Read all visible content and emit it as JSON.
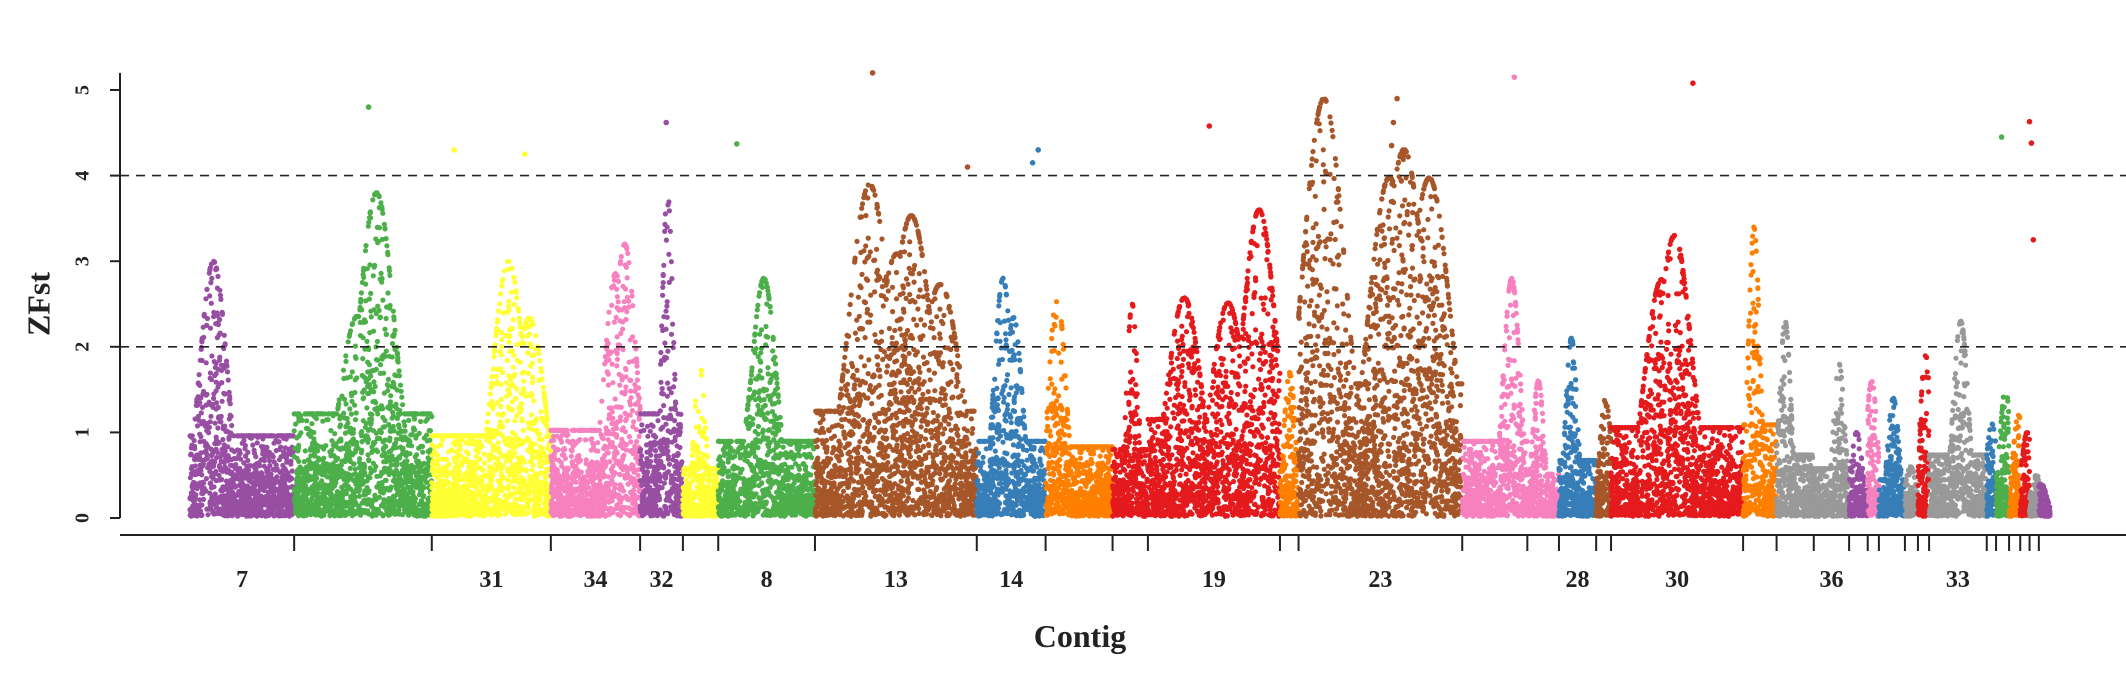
{
  "chart_data": {
    "type": "scatter",
    "title": "",
    "xlabel": "Contig",
    "ylabel": "ZFst",
    "ylim": [
      -0.2,
      5.25
    ],
    "yticks": [
      0,
      1,
      2,
      3,
      4,
      5
    ],
    "reference_lines": [
      2,
      4
    ],
    "grid": false,
    "legend": "none",
    "colors": {
      "purple": "#984ea3",
      "green": "#4daf4a",
      "yellow": "#ffff33",
      "pink": "#f781bf",
      "brown": "#a65628",
      "blue": "#377eb8",
      "orange": "#ff7f00",
      "red": "#e41a1c",
      "grey": "#999999"
    },
    "contigs": [
      {
        "label": "7",
        "start": 0.0,
        "end": 5.6,
        "color": "purple",
        "peak": 3.0
      },
      {
        "label": "",
        "start": 5.6,
        "end": 13.0,
        "color": "green",
        "peak": 3.8
      },
      {
        "label": "31",
        "start": 13.0,
        "end": 19.4,
        "color": "yellow",
        "peak": 3.0
      },
      {
        "label": "34",
        "start": 19.4,
        "end": 24.2,
        "color": "pink",
        "peak": 3.2
      },
      {
        "label": "32",
        "start": 24.2,
        "end": 26.5,
        "color": "purple",
        "peak": 3.8
      },
      {
        "label": "",
        "start": 26.5,
        "end": 28.4,
        "color": "yellow",
        "peak": 1.8
      },
      {
        "label": "8",
        "start": 28.4,
        "end": 33.6,
        "color": "green",
        "peak": 2.8
      },
      {
        "label": "13",
        "start": 33.6,
        "end": 42.3,
        "color": "brown",
        "peak": 3.9
      },
      {
        "label": "14",
        "start": 42.3,
        "end": 46.0,
        "color": "blue",
        "peak": 2.8
      },
      {
        "label": "",
        "start": 46.0,
        "end": 49.6,
        "color": "orange",
        "peak": 2.6
      },
      {
        "label": "",
        "start": 49.6,
        "end": 51.5,
        "color": "red",
        "peak": 2.5
      },
      {
        "label": "19",
        "start": 51.5,
        "end": 58.6,
        "color": "red",
        "peak": 3.6
      },
      {
        "label": "",
        "start": 58.6,
        "end": 59.6,
        "color": "orange",
        "peak": 1.7
      },
      {
        "label": "23",
        "start": 59.6,
        "end": 68.4,
        "color": "brown",
        "peak": 4.9
      },
      {
        "label": "",
        "start": 68.4,
        "end": 71.9,
        "color": "pink",
        "peak": 2.8
      },
      {
        "label": "",
        "start": 71.9,
        "end": 73.6,
        "color": "pink",
        "peak": 1.6
      },
      {
        "label": "28",
        "start": 73.6,
        "end": 75.6,
        "color": "blue",
        "peak": 2.1
      },
      {
        "label": "",
        "start": 75.6,
        "end": 76.4,
        "color": "brown",
        "peak": 1.4
      },
      {
        "label": "30",
        "start": 76.4,
        "end": 83.5,
        "color": "red",
        "peak": 3.3
      },
      {
        "label": "",
        "start": 83.5,
        "end": 85.3,
        "color": "orange",
        "peak": 3.4
      },
      {
        "label": "",
        "start": 85.3,
        "end": 87.3,
        "color": "grey",
        "peak": 2.3
      },
      {
        "label": "36",
        "start": 87.3,
        "end": 89.2,
        "color": "grey",
        "peak": 1.8
      },
      {
        "label": "",
        "start": 89.2,
        "end": 90.2,
        "color": "purple",
        "peak": 1.0
      },
      {
        "label": "",
        "start": 90.2,
        "end": 90.8,
        "color": "pink",
        "peak": 1.6
      },
      {
        "label": "",
        "start": 90.8,
        "end": 92.2,
        "color": "blue",
        "peak": 1.4
      },
      {
        "label": "",
        "start": 92.2,
        "end": 92.9,
        "color": "grey",
        "peak": 0.6
      },
      {
        "label": "",
        "start": 92.9,
        "end": 93.5,
        "color": "red",
        "peak": 1.9
      },
      {
        "label": "33",
        "start": 93.5,
        "end": 96.6,
        "color": "grey",
        "peak": 2.3
      },
      {
        "label": "",
        "start": 96.6,
        "end": 97.1,
        "color": "blue",
        "peak": 1.1
      },
      {
        "label": "",
        "start": 97.1,
        "end": 97.8,
        "color": "green",
        "peak": 1.5
      },
      {
        "label": "",
        "start": 97.8,
        "end": 98.4,
        "color": "orange",
        "peak": 1.2
      },
      {
        "label": "",
        "start": 98.4,
        "end": 98.9,
        "color": "red",
        "peak": 1.0
      },
      {
        "label": "",
        "start": 98.9,
        "end": 99.4,
        "color": "grey",
        "peak": 0.5
      },
      {
        "label": "",
        "start": 99.4,
        "end": 100.0,
        "color": "purple",
        "peak": 0.4
      }
    ],
    "outliers": [
      {
        "pos": 9.6,
        "y": 4.8,
        "color": "green"
      },
      {
        "pos": 14.2,
        "y": 4.3,
        "color": "yellow"
      },
      {
        "pos": 18.0,
        "y": 4.25,
        "color": "yellow"
      },
      {
        "pos": 25.6,
        "y": 4.62,
        "color": "purple"
      },
      {
        "pos": 29.4,
        "y": 4.37,
        "color": "green"
      },
      {
        "pos": 36.7,
        "y": 5.2,
        "color": "brown"
      },
      {
        "pos": 41.8,
        "y": 4.1,
        "color": "brown"
      },
      {
        "pos": 45.6,
        "y": 4.3,
        "color": "blue"
      },
      {
        "pos": 45.3,
        "y": 4.15,
        "color": "blue"
      },
      {
        "pos": 54.8,
        "y": 4.58,
        "color": "red"
      },
      {
        "pos": 64.9,
        "y": 4.9,
        "color": "brown"
      },
      {
        "pos": 64.7,
        "y": 4.62,
        "color": "brown"
      },
      {
        "pos": 64.6,
        "y": 4.35,
        "color": "brown"
      },
      {
        "pos": 71.2,
        "y": 5.15,
        "color": "pink"
      },
      {
        "pos": 80.8,
        "y": 5.08,
        "color": "red"
      },
      {
        "pos": 97.4,
        "y": 4.45,
        "color": "green"
      },
      {
        "pos": 98.9,
        "y": 4.63,
        "color": "red"
      },
      {
        "pos": 99.0,
        "y": 4.38,
        "color": "red"
      },
      {
        "pos": 99.1,
        "y": 3.25,
        "color": "red"
      }
    ]
  }
}
